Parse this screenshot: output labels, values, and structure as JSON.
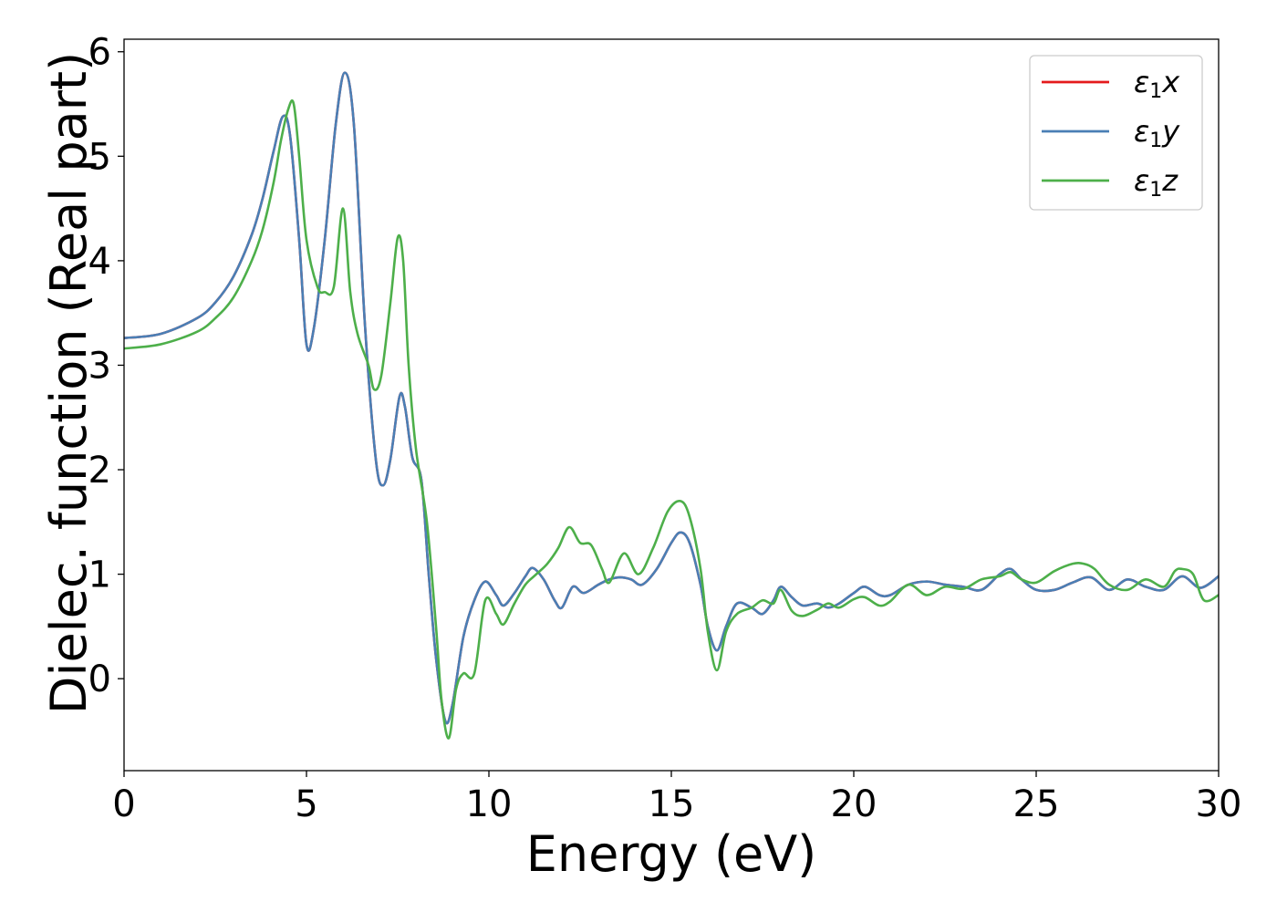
{
  "chart_data": {
    "type": "line",
    "title": "",
    "xlabel": "Energy (eV)",
    "ylabel": "Dielec. function (Real part)",
    "xlim": [
      0,
      30
    ],
    "ylim": [
      -0.88,
      6.12
    ],
    "xticks": [
      0,
      5,
      10,
      15,
      20,
      25,
      30
    ],
    "xtick_labels": [
      "0",
      "5",
      "10",
      "15",
      "20",
      "25",
      "30"
    ],
    "yticks": [
      0,
      1,
      2,
      3,
      4,
      5,
      6
    ],
    "ytick_labels": [
      "0",
      "1",
      "2",
      "3",
      "4",
      "5",
      "6"
    ],
    "grid": false,
    "legend_position": "top-right",
    "series": [
      {
        "name": "ε1x",
        "label_main": "ε",
        "label_sub": "1",
        "label_tail": "x",
        "color": "#e41a1c",
        "x": [
          0,
          1,
          2,
          2.5,
          3,
          3.5,
          3.8,
          4.1,
          4.35,
          4.55,
          4.8,
          5.0,
          5.2,
          5.5,
          5.8,
          6.05,
          6.3,
          6.6,
          6.9,
          7.1,
          7.3,
          7.55,
          7.7,
          7.9,
          8.15,
          8.35,
          8.55,
          8.8,
          9.0,
          9.3,
          9.6,
          9.9,
          10.2,
          10.4,
          10.7,
          11.0,
          11.2,
          11.5,
          11.8,
          12.0,
          12.3,
          12.6,
          13.0,
          13.3,
          13.6,
          13.9,
          14.2,
          14.6,
          15.0,
          15.25,
          15.5,
          15.8,
          16.0,
          16.25,
          16.5,
          16.8,
          17.2,
          17.5,
          17.8,
          18.0,
          18.3,
          18.6,
          19.0,
          19.3,
          19.6,
          20.0,
          20.3,
          20.7,
          21.0,
          21.5,
          22.0,
          22.5,
          23.0,
          23.5,
          24.0,
          24.3,
          24.6,
          25.0,
          25.5,
          26.0,
          26.5,
          27.0,
          27.5,
          28.0,
          28.5,
          29.0,
          29.5,
          30.0
        ],
        "y": [
          3.26,
          3.3,
          3.45,
          3.6,
          3.85,
          4.25,
          4.6,
          5.05,
          5.38,
          5.2,
          4.2,
          3.2,
          3.35,
          4.2,
          5.3,
          5.8,
          5.3,
          3.4,
          2.1,
          1.85,
          2.1,
          2.7,
          2.6,
          2.12,
          1.9,
          1.0,
          0.2,
          -0.4,
          -0.25,
          0.4,
          0.75,
          0.93,
          0.8,
          0.7,
          0.82,
          0.98,
          1.06,
          0.95,
          0.75,
          0.68,
          0.88,
          0.82,
          0.9,
          0.95,
          0.97,
          0.95,
          0.9,
          1.05,
          1.3,
          1.4,
          1.3,
          0.9,
          0.5,
          0.27,
          0.5,
          0.72,
          0.68,
          0.62,
          0.75,
          0.88,
          0.78,
          0.7,
          0.72,
          0.68,
          0.72,
          0.82,
          0.88,
          0.8,
          0.8,
          0.9,
          0.93,
          0.9,
          0.88,
          0.85,
          1.0,
          1.05,
          0.95,
          0.85,
          0.85,
          0.92,
          0.97,
          0.85,
          0.95,
          0.88,
          0.85,
          0.98,
          0.87,
          0.98
        ]
      },
      {
        "name": "ε1y",
        "label_main": "ε",
        "label_sub": "1",
        "label_tail": "y",
        "color": "#4a7fb5",
        "x": [
          0,
          1,
          2,
          2.5,
          3,
          3.5,
          3.8,
          4.1,
          4.35,
          4.55,
          4.8,
          5.0,
          5.2,
          5.5,
          5.8,
          6.05,
          6.3,
          6.6,
          6.9,
          7.1,
          7.3,
          7.55,
          7.7,
          7.9,
          8.15,
          8.35,
          8.55,
          8.8,
          9.0,
          9.3,
          9.6,
          9.9,
          10.2,
          10.4,
          10.7,
          11.0,
          11.2,
          11.5,
          11.8,
          12.0,
          12.3,
          12.6,
          13.0,
          13.3,
          13.6,
          13.9,
          14.2,
          14.6,
          15.0,
          15.25,
          15.5,
          15.8,
          16.0,
          16.25,
          16.5,
          16.8,
          17.2,
          17.5,
          17.8,
          18.0,
          18.3,
          18.6,
          19.0,
          19.3,
          19.6,
          20.0,
          20.3,
          20.7,
          21.0,
          21.5,
          22.0,
          22.5,
          23.0,
          23.5,
          24.0,
          24.3,
          24.6,
          25.0,
          25.5,
          26.0,
          26.5,
          27.0,
          27.5,
          28.0,
          28.5,
          29.0,
          29.5,
          30.0
        ],
        "y": [
          3.26,
          3.3,
          3.45,
          3.6,
          3.85,
          4.25,
          4.6,
          5.05,
          5.38,
          5.2,
          4.2,
          3.2,
          3.35,
          4.2,
          5.3,
          5.8,
          5.3,
          3.4,
          2.1,
          1.85,
          2.1,
          2.7,
          2.6,
          2.12,
          1.9,
          1.0,
          0.2,
          -0.4,
          -0.25,
          0.4,
          0.75,
          0.93,
          0.8,
          0.7,
          0.82,
          0.98,
          1.06,
          0.95,
          0.75,
          0.68,
          0.88,
          0.82,
          0.9,
          0.95,
          0.97,
          0.95,
          0.9,
          1.05,
          1.3,
          1.4,
          1.3,
          0.9,
          0.5,
          0.27,
          0.5,
          0.72,
          0.68,
          0.62,
          0.75,
          0.88,
          0.78,
          0.7,
          0.72,
          0.68,
          0.72,
          0.82,
          0.88,
          0.8,
          0.8,
          0.9,
          0.93,
          0.9,
          0.88,
          0.85,
          1.0,
          1.05,
          0.95,
          0.85,
          0.85,
          0.92,
          0.97,
          0.85,
          0.95,
          0.88,
          0.85,
          0.98,
          0.87,
          0.98
        ]
      },
      {
        "name": "ε1z",
        "label_main": "ε",
        "label_sub": "1",
        "label_tail": "z",
        "color": "#4daf4a",
        "x": [
          0,
          1,
          2,
          2.5,
          3,
          3.5,
          3.8,
          4.1,
          4.3,
          4.5,
          4.65,
          4.8,
          5.0,
          5.3,
          5.5,
          5.75,
          6.0,
          6.2,
          6.4,
          6.7,
          6.85,
          7.05,
          7.3,
          7.5,
          7.65,
          7.8,
          8.0,
          8.3,
          8.55,
          8.7,
          8.9,
          9.1,
          9.3,
          9.6,
          9.9,
          10.2,
          10.4,
          10.7,
          11.0,
          11.3,
          11.6,
          11.9,
          12.2,
          12.5,
          12.8,
          13.1,
          13.3,
          13.7,
          14.1,
          14.5,
          14.9,
          15.25,
          15.5,
          15.8,
          16.0,
          16.25,
          16.5,
          16.8,
          17.2,
          17.5,
          17.8,
          18.0,
          18.3,
          18.6,
          19.0,
          19.3,
          19.6,
          20.0,
          20.3,
          20.7,
          21.0,
          21.5,
          22.0,
          22.5,
          23.0,
          23.5,
          24.0,
          24.3,
          24.6,
          25.0,
          25.5,
          26.0,
          26.3,
          26.6,
          27.0,
          27.5,
          28.0,
          28.5,
          28.8,
          29.0,
          29.3,
          29.6,
          30.0
        ],
        "y": [
          3.16,
          3.2,
          3.32,
          3.45,
          3.65,
          4.0,
          4.3,
          4.75,
          5.15,
          5.45,
          5.5,
          5.0,
          4.2,
          3.75,
          3.7,
          3.75,
          4.5,
          3.7,
          3.3,
          3.0,
          2.77,
          2.9,
          3.6,
          4.22,
          4.0,
          3.0,
          2.2,
          1.5,
          0.5,
          -0.2,
          -0.57,
          -0.1,
          0.05,
          0.05,
          0.75,
          0.62,
          0.52,
          0.72,
          0.9,
          1.0,
          1.1,
          1.25,
          1.45,
          1.3,
          1.28,
          1.05,
          0.92,
          1.2,
          1.0,
          1.25,
          1.6,
          1.7,
          1.55,
          1.05,
          0.45,
          0.08,
          0.45,
          0.62,
          0.68,
          0.75,
          0.72,
          0.85,
          0.65,
          0.6,
          0.66,
          0.72,
          0.68,
          0.76,
          0.78,
          0.7,
          0.74,
          0.9,
          0.8,
          0.88,
          0.86,
          0.95,
          0.98,
          1.02,
          0.95,
          0.92,
          1.03,
          1.1,
          1.1,
          1.05,
          0.9,
          0.85,
          0.95,
          0.88,
          1.03,
          1.05,
          1.0,
          0.75,
          0.8
        ]
      }
    ]
  }
}
